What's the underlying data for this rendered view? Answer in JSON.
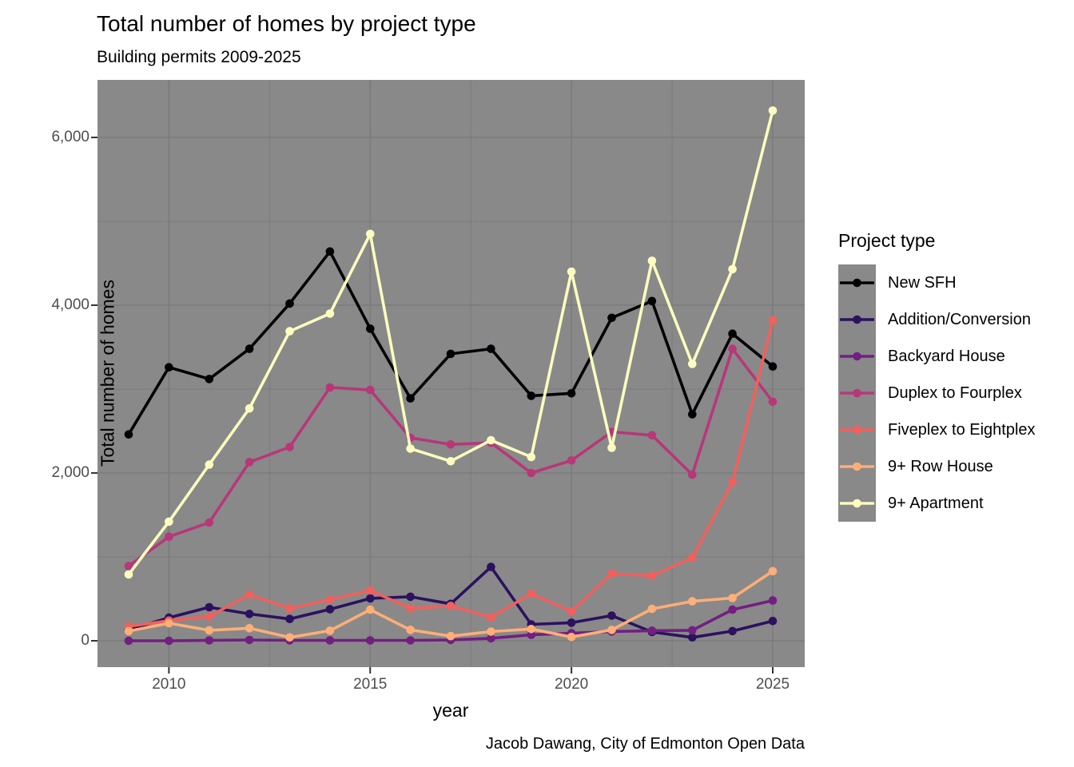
{
  "title": "Total number of homes by project type",
  "subtitle": "Building permits 2009-2025",
  "caption": "Jacob Dawang, City of Edmonton Open Data",
  "x_axis": {
    "label": "year",
    "tick_labels": [
      "2010",
      "2015",
      "2020",
      "2025"
    ]
  },
  "y_axis": {
    "label": "Total number of homes",
    "tick_labels": [
      "0",
      "2,000",
      "4,000",
      "6,000"
    ]
  },
  "legend": {
    "title": "Project type"
  },
  "colors": {
    "panel_background": "#898989",
    "grid_line": "#7a7a7a",
    "axis_tick_mark": "#333333",
    "tick_label_text": "#4d4d4d",
    "text": "#000000"
  },
  "chart_data": {
    "type": "line",
    "title": "Total number of homes by project type",
    "subtitle": "Building permits 2009-2025",
    "xlabel": "year",
    "ylabel": "Total number of homes",
    "legend_title": "Project type",
    "legend_position": "right",
    "grid": true,
    "x": [
      2009,
      2010,
      2011,
      2012,
      2013,
      2014,
      2015,
      2016,
      2017,
      2018,
      2019,
      2020,
      2021,
      2022,
      2023,
      2024,
      2025
    ],
    "xlim": [
      2009,
      2025
    ],
    "ylim": [
      0,
      6500
    ],
    "x_major_gridlines": [
      2010,
      2015,
      2020,
      2025
    ],
    "x_minor_gridlines": [
      2012.5,
      2017.5,
      2022.5
    ],
    "y_major_gridlines": [
      0,
      2000,
      4000,
      6000
    ],
    "y_minor_gridlines": [
      1000,
      3000,
      5000
    ],
    "series": [
      {
        "name": "New SFH",
        "color": "#000004",
        "values": [
          2460,
          3260,
          3120,
          3480,
          4020,
          4640,
          3720,
          2890,
          3420,
          3480,
          2920,
          2950,
          3850,
          4050,
          2700,
          3660,
          3270
        ]
      },
      {
        "name": "Addition/Conversion",
        "color": "#2C115F",
        "values": [
          130,
          275,
          400,
          320,
          260,
          375,
          505,
          525,
          440,
          880,
          195,
          215,
          300,
          105,
          40,
          115,
          235
        ]
      },
      {
        "name": "Backyard House",
        "color": "#721F81",
        "values": [
          0,
          0,
          5,
          10,
          5,
          5,
          5,
          5,
          10,
          30,
          70,
          90,
          110,
          120,
          125,
          370,
          480
        ]
      },
      {
        "name": "Duplex to Fourplex",
        "color": "#B73779",
        "values": [
          890,
          1240,
          1410,
          2130,
          2310,
          3020,
          2990,
          2420,
          2340,
          2360,
          2000,
          2150,
          2490,
          2450,
          1980,
          3480,
          2850
        ]
      },
      {
        "name": "Fiveplex to Eightplex",
        "color": "#F1605D",
        "values": [
          170,
          240,
          290,
          550,
          385,
          490,
          600,
          385,
          415,
          280,
          560,
          350,
          800,
          775,
          990,
          1890,
          3820
        ]
      },
      {
        "name": "9+ Row House",
        "color": "#FEAE77",
        "values": [
          115,
          210,
          125,
          150,
          40,
          120,
          370,
          130,
          55,
          110,
          140,
          45,
          130,
          380,
          470,
          510,
          830
        ]
      },
      {
        "name": "9+ Apartment",
        "color": "#FCFDBF",
        "values": [
          790,
          1420,
          2100,
          2770,
          3690,
          3900,
          4850,
          2290,
          2140,
          2390,
          2190,
          4400,
          2300,
          4530,
          3300,
          4430,
          6320
        ]
      }
    ]
  }
}
